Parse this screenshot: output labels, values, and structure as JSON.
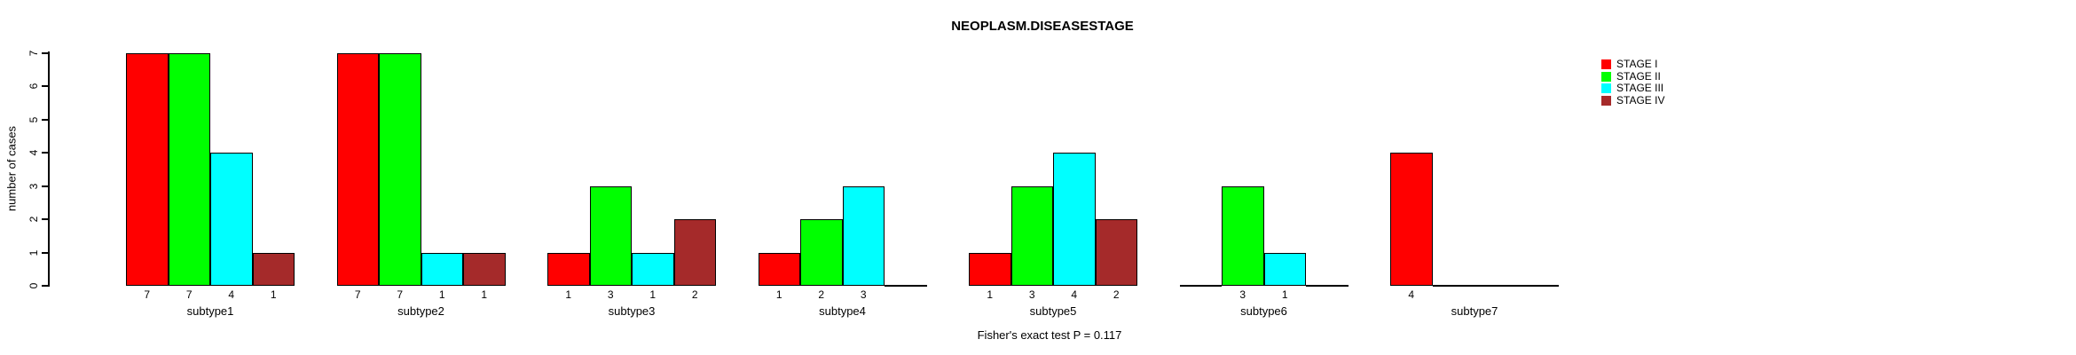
{
  "page": {
    "background_color": "#ffffff",
    "text_color": "#000000"
  },
  "chart_data": {
    "type": "bar",
    "title": "NEOPLASM.DISEASESTAGE",
    "subtitle": "Fisher's exact test P = 0.117",
    "xlabel": "",
    "ylabel": "number of cases",
    "ylim": [
      0,
      7
    ],
    "yticks": [
      0,
      1,
      2,
      3,
      4,
      5,
      6,
      7
    ],
    "grid": false,
    "bar_value_labels_shown": true,
    "legend_position": "top-right",
    "categories": [
      "subtype1",
      "subtype2",
      "subtype3",
      "subtype4",
      "subtype5",
      "subtype6",
      "subtype7"
    ],
    "series": [
      {
        "name": "STAGE I",
        "color": "#FF0000",
        "values": [
          7,
          7,
          1,
          1,
          1,
          0,
          4
        ]
      },
      {
        "name": "STAGE II",
        "color": "#00FF00",
        "values": [
          7,
          7,
          3,
          2,
          3,
          3,
          0
        ]
      },
      {
        "name": "STAGE III",
        "color": "#00FFFF",
        "values": [
          4,
          1,
          1,
          3,
          4,
          1,
          0
        ]
      },
      {
        "name": "STAGE IV",
        "color": "#A52A2A",
        "values": [
          1,
          1,
          2,
          0,
          2,
          0,
          0
        ]
      }
    ]
  }
}
